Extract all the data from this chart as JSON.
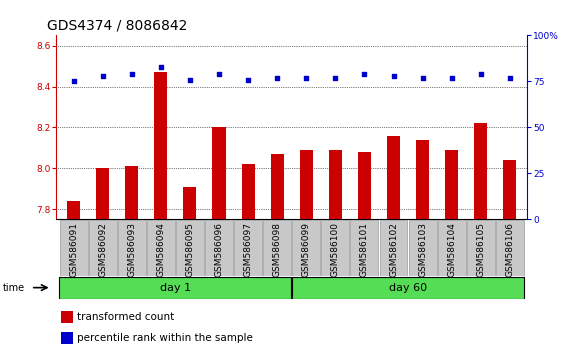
{
  "title": "GDS4374 / 8086842",
  "samples": [
    "GSM586091",
    "GSM586092",
    "GSM586093",
    "GSM586094",
    "GSM586095",
    "GSM586096",
    "GSM586097",
    "GSM586098",
    "GSM586099",
    "GSM586100",
    "GSM586101",
    "GSM586102",
    "GSM586103",
    "GSM586104",
    "GSM586105",
    "GSM586106"
  ],
  "transformed_count": [
    7.84,
    8.0,
    8.01,
    8.47,
    7.91,
    8.2,
    8.02,
    8.07,
    8.09,
    8.09,
    8.08,
    8.16,
    8.14,
    8.09,
    8.22,
    8.04
  ],
  "percentile_rank": [
    75,
    78,
    79,
    83,
    76,
    79,
    76,
    77,
    77,
    77,
    79,
    78,
    77,
    77,
    79,
    77
  ],
  "day1_samples": 8,
  "day60_samples": 8,
  "ylim_left": [
    7.75,
    8.65
  ],
  "ylim_right": [
    0,
    100
  ],
  "yticks_left": [
    7.8,
    8.0,
    8.2,
    8.4,
    8.6
  ],
  "yticks_right": [
    0,
    25,
    50,
    75,
    100
  ],
  "bar_color": "#cc0000",
  "dot_color": "#0000cc",
  "day1_label": "day 1",
  "day60_label": "day 60",
  "day_box_color": "#55dd55",
  "xtick_bg": "#c8c8c8",
  "legend_bar_label": "transformed count",
  "legend_dot_label": "percentile rank within the sample",
  "time_label": "time",
  "title_fontsize": 10,
  "tick_fontsize": 6.5,
  "axis_label_fontsize": 7,
  "day_label_fontsize": 8,
  "legend_fontsize": 7.5
}
